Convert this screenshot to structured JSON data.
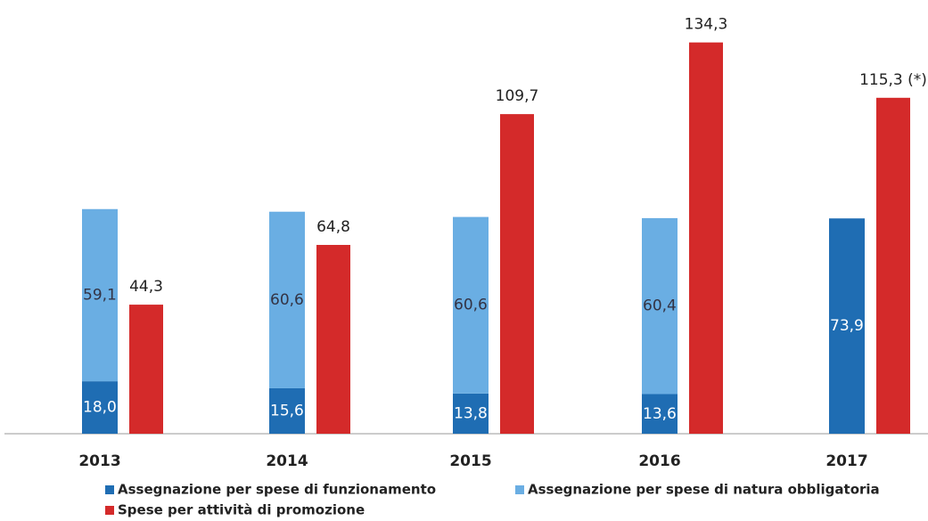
{
  "chart_data": {
    "type": "bar",
    "categories": [
      "2013",
      "2014",
      "2015",
      "2016",
      "2017"
    ],
    "series": [
      {
        "name": "Assegnazione per spese di funzionamento",
        "color": "#1f6db3",
        "stack": "a",
        "values": [
          18.0,
          15.6,
          13.8,
          13.6,
          73.9
        ],
        "value_labels": [
          "18,0",
          "15,6",
          "13,8",
          "13,6",
          "73,9 (*)"
        ]
      },
      {
        "name": "Assegnazione per spese di natura obbligatoria",
        "color": "#6aaee3",
        "stack": "a",
        "values": [
          59.1,
          60.6,
          60.6,
          60.4,
          null
        ],
        "value_labels": [
          "59,1",
          "60,6",
          "60,6",
          "60,4",
          null
        ]
      },
      {
        "name": "Spese per attività di promozione",
        "color": "#d42a2a",
        "stack": "b",
        "values": [
          44.3,
          64.8,
          109.7,
          134.3,
          115.3
        ],
        "value_labels": [
          "44,3",
          "64,8",
          "109,7",
          "134,3",
          "115,3 (*)"
        ]
      }
    ],
    "ylim": [
      0,
      140
    ]
  }
}
